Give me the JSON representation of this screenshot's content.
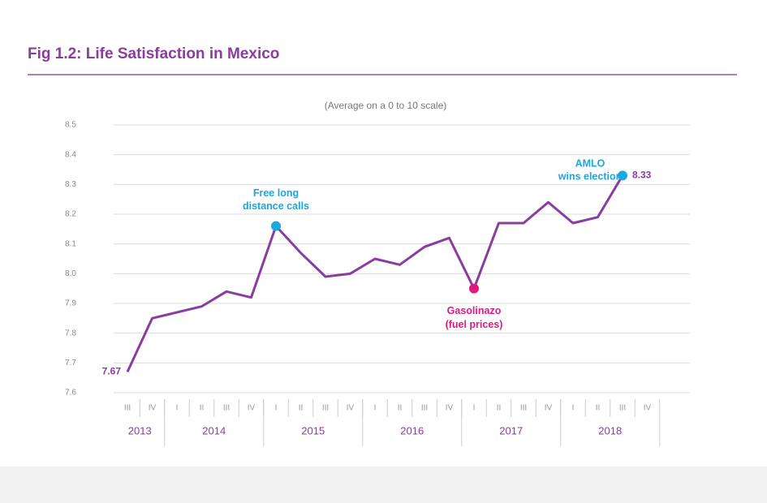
{
  "chart_data": {
    "type": "line",
    "title": "Fig 1.2: Life Satisfaction in Mexico",
    "subtitle": "(Average on a 0 to 10 scale)",
    "categories": [
      "III",
      "IV",
      "I",
      "II",
      "III",
      "IV",
      "I",
      "II",
      "III",
      "IV",
      "I",
      "II",
      "III",
      "IV",
      "I",
      "II",
      "III",
      "IV",
      "I",
      "II",
      "III",
      "IV"
    ],
    "years": [
      "2013",
      "2014",
      "2015",
      "2016",
      "2017",
      "2018"
    ],
    "values": [
      7.67,
      7.85,
      7.87,
      7.89,
      7.94,
      7.92,
      8.16,
      8.07,
      7.99,
      8.0,
      8.05,
      8.03,
      8.09,
      8.12,
      7.95,
      8.17,
      8.17,
      8.24,
      8.17,
      8.19,
      8.33,
      null
    ],
    "color": "#8a3d9e",
    "ylim": [
      7.6,
      8.5
    ],
    "yticks": [
      7.6,
      7.7,
      7.8,
      7.9,
      {
        "value": 8,
        "label": "8.0"
      },
      8.1,
      8.2,
      8.3,
      8.4,
      8.5
    ],
    "grid": true,
    "annotations": [
      {
        "index": 6,
        "lines": [
          "Free long",
          "distance calls"
        ],
        "color": "#1ba7e0",
        "position": "above"
      },
      {
        "index": 14,
        "lines": [
          "Gasolinazo",
          "(fuel prices)"
        ],
        "color": "#e0197d",
        "position": "below"
      },
      {
        "index": 20,
        "lines": [
          "AMLO",
          "wins election"
        ],
        "color": "#1ba7e0",
        "position": "left"
      }
    ]
  }
}
